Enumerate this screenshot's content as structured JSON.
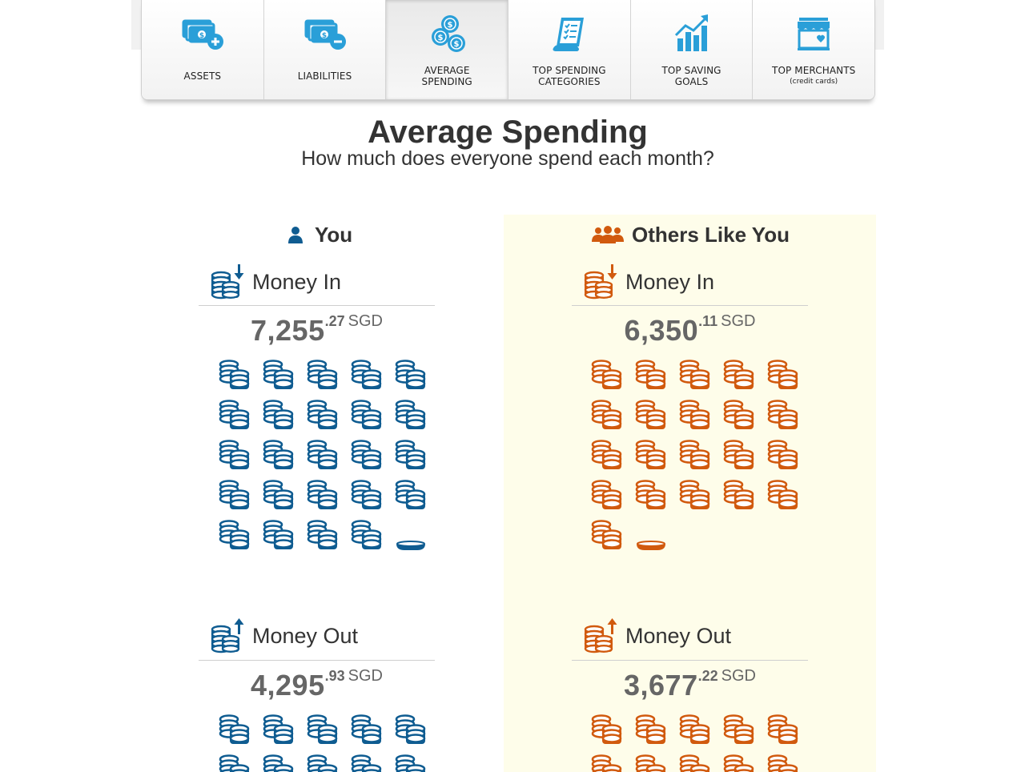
{
  "tabs": [
    {
      "label": "ASSETS",
      "sub": "",
      "icon": "money-plus-icon",
      "active": false
    },
    {
      "label": "LIABILITIES",
      "sub": "",
      "icon": "money-minus-icon",
      "active": false
    },
    {
      "label": "AVERAGE\nSPENDING",
      "sub": "",
      "icon": "coins-dollar-icon",
      "active": true
    },
    {
      "label": "TOP SPENDING\nCATEGORIES",
      "sub": "",
      "icon": "checklist-icon",
      "active": false
    },
    {
      "label": "TOP SAVING\nGOALS",
      "sub": "",
      "icon": "growth-chart-icon",
      "active": false
    },
    {
      "label": "TOP MERCHANTS",
      "sub": "(credit cards)",
      "icon": "storefront-icon",
      "active": false
    }
  ],
  "page": {
    "title": "Average Spending",
    "subtitle": "How much does everyone spend each month?"
  },
  "colors": {
    "you": "#0f5c91",
    "others": "#d15a0e",
    "others_bg": "#fefdea",
    "tab_icon": "#2a9fd8"
  },
  "you": {
    "heading": "You",
    "money_in": {
      "label": "Money In",
      "whole": "7,255",
      "cents": ".27",
      "currency": "SGD",
      "coins_full": 24,
      "coin_partial": 0.3
    },
    "money_out": {
      "label": "Money Out",
      "whole": "4,295",
      "cents": ".93",
      "currency": "SGD"
    }
  },
  "others": {
    "heading": "Others Like You",
    "money_in": {
      "label": "Money In",
      "whole": "6,350",
      "cents": ".11",
      "currency": "SGD",
      "coins_full": 21,
      "coin_partial": 0.3
    },
    "money_out": {
      "label": "Money Out",
      "whole": "3,677",
      "cents": ".22",
      "currency": "SGD"
    }
  }
}
